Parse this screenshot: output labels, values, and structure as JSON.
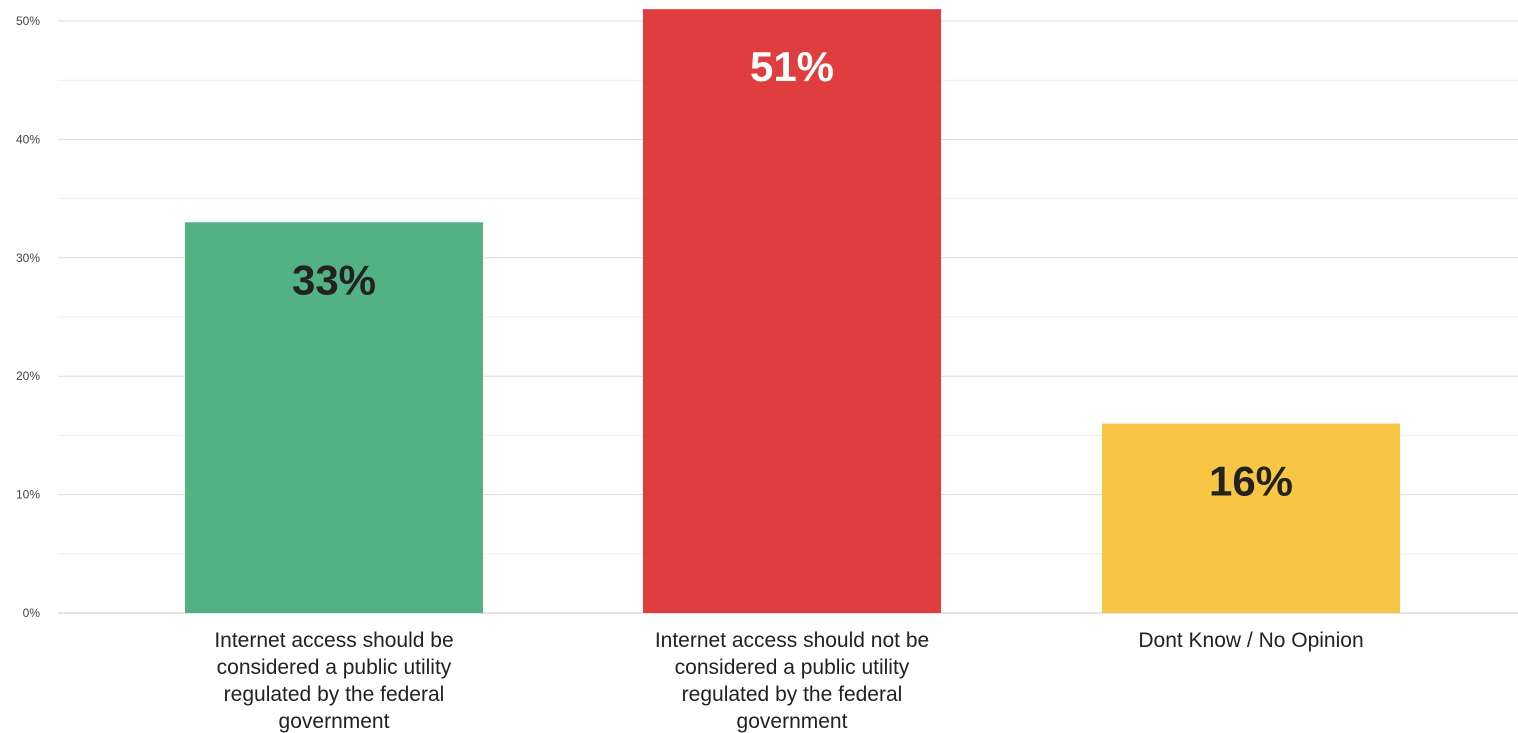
{
  "chart_data": {
    "type": "bar",
    "title": "",
    "xlabel": "",
    "ylabel": "",
    "ylim": [
      0,
      50
    ],
    "yticks": [
      0,
      10,
      20,
      30,
      40,
      50
    ],
    "ytick_labels": [
      "0%",
      "10%",
      "20%",
      "30%",
      "40%",
      "50%"
    ],
    "grid": true,
    "categories": [
      "Internet access should be considered a public utility regulated by the federal government",
      "Internet access should not be considered a public utility regulated by the federal government",
      "Dont Know / No Opinion"
    ],
    "category_label_lines": [
      [
        "Internet access should be",
        "considered a public utility",
        "regulated by the federal",
        "government"
      ],
      [
        "Internet access should not be",
        "considered a public utility",
        "regulated by the federal",
        "government"
      ],
      [
        "Dont Know / No Opinion"
      ]
    ],
    "values": [
      33,
      51,
      16
    ],
    "data_labels": [
      "33%",
      "51%",
      "16%"
    ],
    "colors": [
      "#52b283",
      "#e03d3e",
      "#f8c545"
    ],
    "data_label_colors": [
      "#222222",
      "#ffffff",
      "#222222"
    ]
  }
}
